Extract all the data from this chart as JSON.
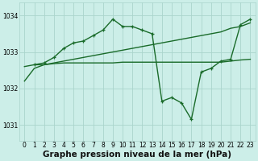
{
  "background_color": "#cceee8",
  "grid_color": "#aad4cc",
  "line_color": "#1a6b2a",
  "title": "Graphe pression niveau de la mer (hPa)",
  "xlim": [
    -0.5,
    23.5
  ],
  "ylim": [
    1030.55,
    1034.35
  ],
  "yticks": [
    1031,
    1032,
    1033,
    1034
  ],
  "xticks": [
    0,
    1,
    2,
    3,
    4,
    5,
    6,
    7,
    8,
    9,
    10,
    11,
    12,
    13,
    14,
    15,
    16,
    17,
    18,
    19,
    20,
    21,
    22,
    23
  ],
  "series": [
    {
      "x": [
        0,
        1,
        2,
        3,
        4,
        5,
        6,
        7,
        8,
        9,
        10,
        11,
        12,
        13,
        14,
        15,
        16,
        17,
        18,
        19,
        20,
        21,
        22,
        23
      ],
      "y": [
        1032.2,
        1032.55,
        1032.65,
        1032.7,
        1032.75,
        1032.8,
        1032.85,
        1032.9,
        1032.95,
        1033.0,
        1033.05,
        1033.1,
        1033.15,
        1033.2,
        1033.25,
        1033.3,
        1033.35,
        1033.4,
        1033.45,
        1033.5,
        1033.55,
        1033.65,
        1033.7,
        1033.8
      ],
      "has_markers": false,
      "linewidth": 1.0
    },
    {
      "x": [
        0,
        1,
        2,
        3,
        4,
        5,
        6,
        7,
        8,
        9,
        10,
        11,
        12,
        13,
        14,
        15,
        16,
        17,
        18,
        19,
        20,
        21,
        22,
        23
      ],
      "y": [
        1032.6,
        1032.65,
        1032.65,
        1032.68,
        1032.7,
        1032.7,
        1032.7,
        1032.7,
        1032.7,
        1032.7,
        1032.72,
        1032.72,
        1032.72,
        1032.72,
        1032.72,
        1032.72,
        1032.72,
        1032.72,
        1032.72,
        1032.72,
        1032.72,
        1032.75,
        1032.78,
        1032.8
      ],
      "has_markers": false,
      "linewidth": 1.0
    },
    {
      "x": [
        1,
        2,
        3,
        4,
        5,
        6,
        7,
        8,
        9,
        10,
        11,
        12,
        13,
        14,
        15,
        16,
        17,
        18,
        19,
        20,
        21,
        22,
        23
      ],
      "y": [
        1032.65,
        1032.7,
        1032.85,
        1033.1,
        1033.25,
        1033.3,
        1033.45,
        1033.6,
        1033.9,
        1033.7,
        1033.7,
        1033.6,
        1033.5,
        1031.65,
        1031.75,
        1031.6,
        1031.15,
        1032.45,
        1032.55,
        1032.75,
        1032.8,
        1033.75,
        1033.9
      ],
      "has_markers": true,
      "linewidth": 1.0
    }
  ],
  "title_fontsize": 7.5,
  "tick_fontsize": 5.5
}
